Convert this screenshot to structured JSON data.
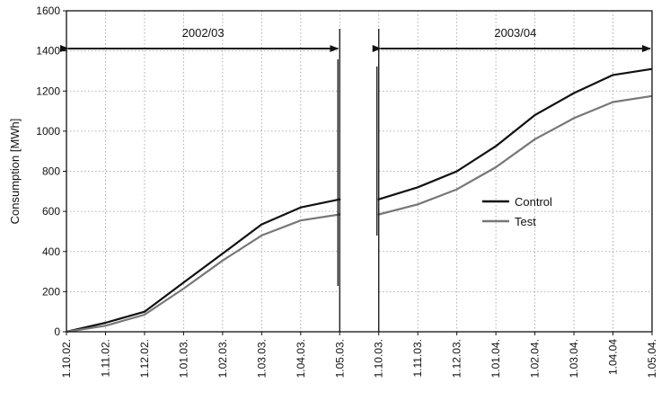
{
  "chart_data": {
    "type": "line",
    "ylabel": "Consumption [MWh]",
    "ylim": [
      0,
      1600
    ],
    "yticks": [
      "0",
      "200",
      "400",
      "600",
      "800",
      "1000",
      "1200",
      "1400",
      "1600"
    ],
    "x": [
      "1.10.02.",
      "1.11.02.",
      "1.12.02.",
      "1.01.03.",
      "1.02.03.",
      "1.03.03.",
      "1.04.03.",
      "1.05.03.",
      "1.10.03.",
      "1.11.03.",
      "1.12.03.",
      "1.01.04.",
      "1.02.04.",
      "1.03.04.",
      "1.04.04",
      "1.05.04."
    ],
    "series": [
      {
        "name": "Control",
        "color": "#111111",
        "values": [
          0,
          45,
          100,
          245,
          390,
          535,
          620,
          660,
          660,
          720,
          800,
          925,
          1080,
          1190,
          1280,
          1310
        ]
      },
      {
        "name": "Test",
        "color": "#777777",
        "values": [
          0,
          30,
          85,
          215,
          355,
          480,
          555,
          585,
          585,
          635,
          710,
          820,
          960,
          1065,
          1145,
          1175
        ]
      }
    ],
    "periods": [
      {
        "label": "2002/03",
        "from": "1.10.02.",
        "to": "1.05.03."
      },
      {
        "label": "2003/04",
        "from": "1.10.03.",
        "to": "1.05.04."
      }
    ],
    "grid": true,
    "legend_position": "center-right"
  }
}
